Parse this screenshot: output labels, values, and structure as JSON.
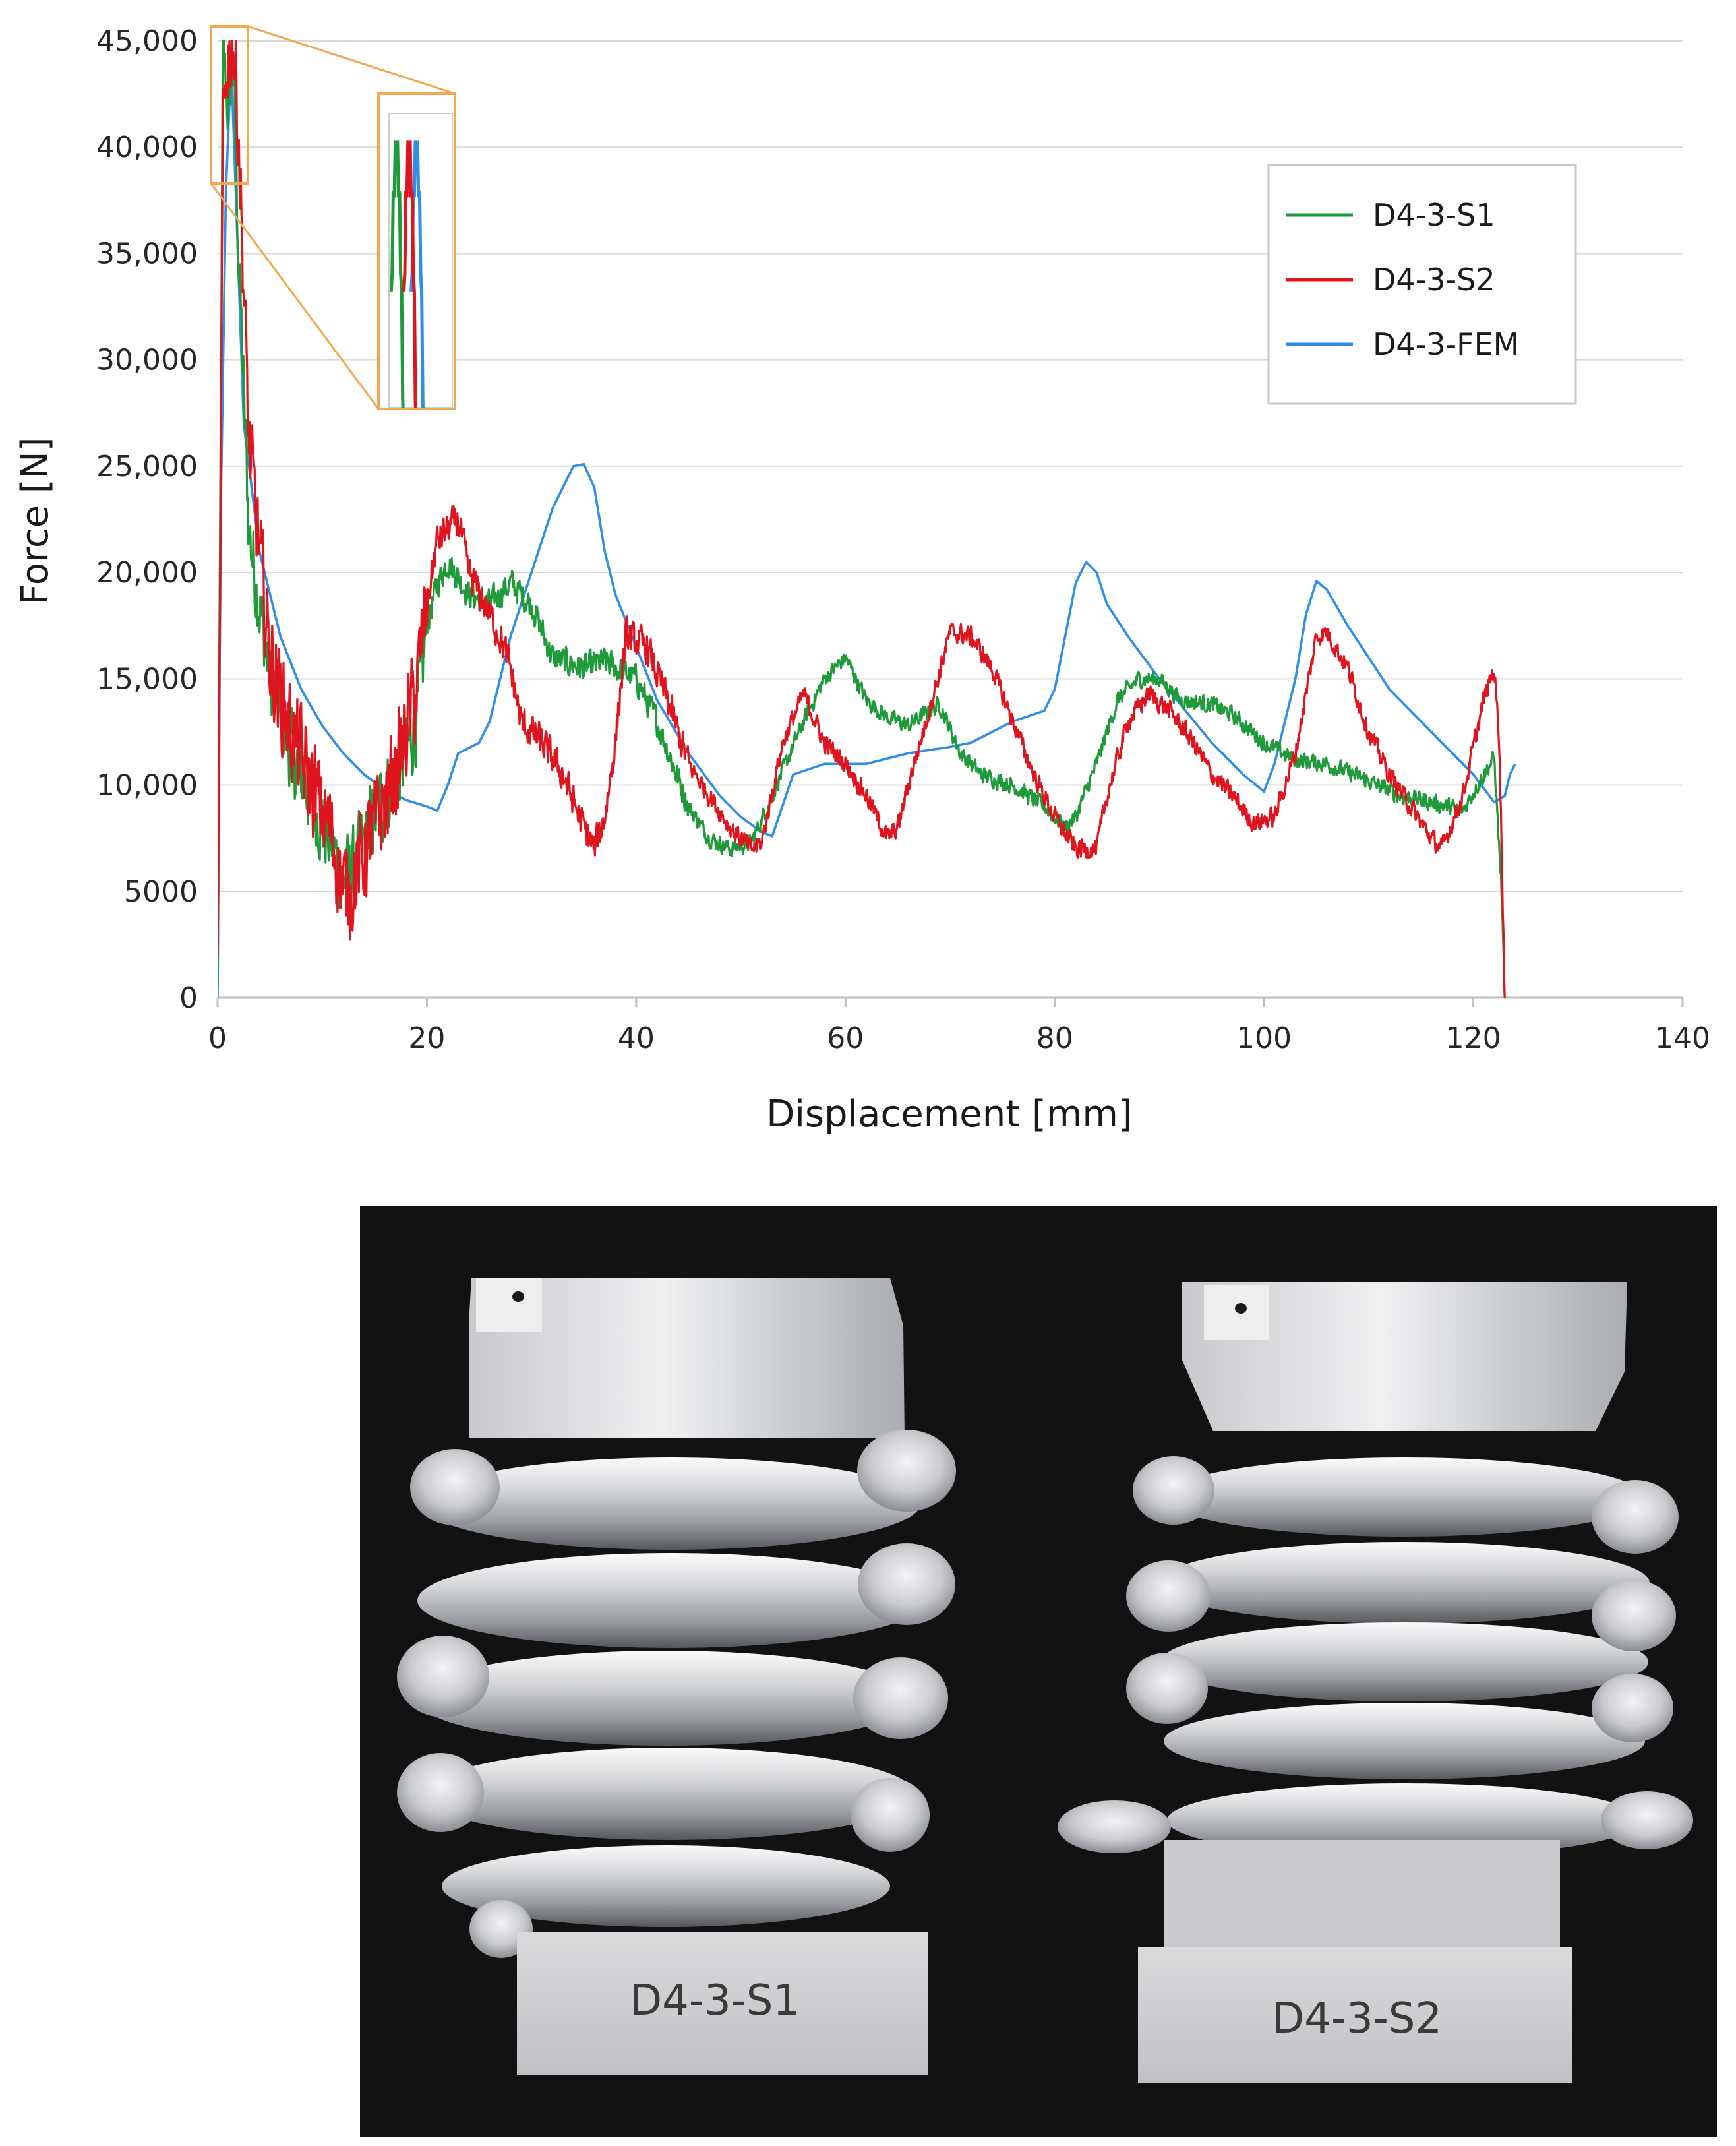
{
  "chart_data": {
    "type": "line",
    "xlabel": "Displacement [mm]",
    "ylabel": "Force [N]",
    "xlim": [
      0,
      140
    ],
    "ylim": [
      0,
      45000
    ],
    "x_ticks": [
      "0",
      "20",
      "40",
      "60",
      "80",
      "100",
      "120",
      "140"
    ],
    "y_ticks": [
      "0",
      "5000",
      "10,000",
      "15,000",
      "20,000",
      "25,000",
      "30,000",
      "35,000",
      "40,000",
      "45,000"
    ],
    "grid": "horizontal",
    "legend_position": "top-right",
    "inset": "zoom of initial peak (0–3 mm, 38,000–45,000 N)",
    "series": [
      {
        "name": "D4-3-S1",
        "color": "#1f9a3a",
        "noise": 2200,
        "points": [
          [
            0,
            0
          ],
          [
            0.5,
            44500
          ],
          [
            1,
            42000
          ],
          [
            1.5,
            44000
          ],
          [
            2,
            35000
          ],
          [
            3,
            22000
          ],
          [
            5,
            15000
          ],
          [
            7,
            11500
          ],
          [
            9,
            9500
          ],
          [
            11,
            7000
          ],
          [
            12,
            5500
          ],
          [
            13,
            6000
          ],
          [
            15,
            8500
          ],
          [
            17,
            10500
          ],
          [
            18,
            11500
          ],
          [
            19,
            13000
          ],
          [
            20,
            17500
          ],
          [
            21,
            19500
          ],
          [
            22,
            20500
          ],
          [
            24,
            19000
          ],
          [
            26,
            18500
          ],
          [
            28,
            19500
          ],
          [
            30,
            18500
          ],
          [
            32,
            16000
          ],
          [
            35,
            15500
          ],
          [
            37,
            15800
          ],
          [
            40,
            15000
          ],
          [
            42,
            13000
          ],
          [
            45,
            9000
          ],
          [
            47,
            7500
          ],
          [
            49,
            7000
          ],
          [
            51,
            7300
          ],
          [
            53,
            9500
          ],
          [
            56,
            13000
          ],
          [
            58,
            15000
          ],
          [
            60,
            16000
          ],
          [
            62,
            14000
          ],
          [
            64,
            13200
          ],
          [
            66,
            12800
          ],
          [
            68,
            13500
          ],
          [
            69,
            13800
          ],
          [
            71,
            11500
          ],
          [
            73,
            10500
          ],
          [
            76,
            10000
          ],
          [
            79,
            9000
          ],
          [
            81,
            8000
          ],
          [
            82,
            8500
          ],
          [
            84,
            11000
          ],
          [
            86,
            14000
          ],
          [
            88,
            15000
          ],
          [
            90,
            15000
          ],
          [
            92,
            14000
          ],
          [
            95,
            13800
          ],
          [
            97,
            13300
          ],
          [
            100,
            12000
          ],
          [
            103,
            11200
          ],
          [
            106,
            11000
          ],
          [
            110,
            10200
          ],
          [
            113,
            9500
          ],
          [
            116,
            9200
          ],
          [
            119,
            8800
          ],
          [
            121,
            10500
          ],
          [
            122,
            11300
          ],
          [
            122.7,
            5000
          ],
          [
            123,
            0
          ]
        ]
      },
      {
        "name": "D4-3-S2",
        "color": "#e0141e",
        "noise": 2600,
        "points": [
          [
            0,
            0
          ],
          [
            0.5,
            40000
          ],
          [
            1,
            44800
          ],
          [
            1.5,
            45000
          ],
          [
            2,
            41000
          ],
          [
            3,
            26000
          ],
          [
            5,
            16000
          ],
          [
            7,
            12500
          ],
          [
            9,
            10000
          ],
          [
            11,
            7500
          ],
          [
            12,
            5000
          ],
          [
            13,
            5500
          ],
          [
            15,
            8000
          ],
          [
            17,
            10500
          ],
          [
            19,
            14500
          ],
          [
            20,
            18500
          ],
          [
            21,
            21500
          ],
          [
            23,
            22500
          ],
          [
            24,
            20000
          ],
          [
            26,
            18000
          ],
          [
            27,
            17000
          ],
          [
            28,
            15500
          ],
          [
            29,
            13000
          ],
          [
            31,
            12000
          ],
          [
            33,
            10500
          ],
          [
            35,
            8000
          ],
          [
            36,
            7000
          ],
          [
            37,
            8500
          ],
          [
            38,
            12000
          ],
          [
            39,
            17000
          ],
          [
            41,
            16500
          ],
          [
            43,
            14000
          ],
          [
            45,
            11000
          ],
          [
            47,
            9500
          ],
          [
            49,
            8000
          ],
          [
            51,
            7000
          ],
          [
            52,
            7300
          ],
          [
            54,
            12000
          ],
          [
            56,
            14300
          ],
          [
            58,
            12000
          ],
          [
            60,
            11000
          ],
          [
            62,
            9500
          ],
          [
            64,
            7500
          ],
          [
            65,
            8000
          ],
          [
            66,
            10000
          ],
          [
            68,
            13500
          ],
          [
            70,
            17200
          ],
          [
            72,
            17000
          ],
          [
            74,
            15500
          ],
          [
            76,
            13000
          ],
          [
            78,
            10500
          ],
          [
            80,
            8500
          ],
          [
            82,
            7000
          ],
          [
            84,
            7000
          ],
          [
            85,
            9500
          ],
          [
            87,
            13000
          ],
          [
            89,
            14300
          ],
          [
            91,
            13500
          ],
          [
            93,
            12200
          ],
          [
            95,
            10500
          ],
          [
            97,
            9500
          ],
          [
            99,
            8200
          ],
          [
            101,
            8500
          ],
          [
            103,
            11500
          ],
          [
            105,
            17000
          ],
          [
            106,
            17200
          ],
          [
            108,
            15500
          ],
          [
            110,
            12500
          ],
          [
            112,
            10500
          ],
          [
            114,
            9000
          ],
          [
            116,
            7500
          ],
          [
            117,
            7000
          ],
          [
            119,
            9500
          ],
          [
            121,
            14000
          ],
          [
            122,
            15500
          ],
          [
            122.5,
            12000
          ],
          [
            123,
            0
          ]
        ]
      },
      {
        "name": "D4-3-FEM",
        "color": "#2e8ee8",
        "noise": 0,
        "points": [
          [
            0,
            0
          ],
          [
            0.3,
            23000
          ],
          [
            0.8,
            38000
          ],
          [
            1.3,
            44000
          ],
          [
            1.8,
            37000
          ],
          [
            2.5,
            27000
          ],
          [
            4,
            21000
          ],
          [
            6,
            17000
          ],
          [
            8,
            14500
          ],
          [
            10,
            12800
          ],
          [
            12,
            11500
          ],
          [
            14,
            10500
          ],
          [
            16,
            9800
          ],
          [
            18,
            9300
          ],
          [
            20,
            9000
          ],
          [
            21,
            8800
          ],
          [
            22,
            10000
          ],
          [
            23,
            11500
          ],
          [
            25,
            12000
          ],
          [
            26,
            13000
          ],
          [
            28,
            17000
          ],
          [
            30,
            20000
          ],
          [
            32,
            23000
          ],
          [
            34,
            25000
          ],
          [
            35,
            25100
          ],
          [
            36,
            24000
          ],
          [
            37,
            21000
          ],
          [
            38,
            19000
          ],
          [
            40,
            16500
          ],
          [
            42,
            14000
          ],
          [
            45,
            11500
          ],
          [
            48,
            9500
          ],
          [
            50,
            8500
          ],
          [
            52,
            7800
          ],
          [
            53,
            7600
          ],
          [
            55,
            10500
          ],
          [
            58,
            11000
          ],
          [
            62,
            11000
          ],
          [
            66,
            11500
          ],
          [
            70,
            11800
          ],
          [
            72,
            12000
          ],
          [
            76,
            13000
          ],
          [
            79,
            13500
          ],
          [
            80,
            14500
          ],
          [
            81,
            17000
          ],
          [
            82,
            19500
          ],
          [
            83,
            20500
          ],
          [
            84,
            20000
          ],
          [
            85,
            18500
          ],
          [
            87,
            17000
          ],
          [
            90,
            15000
          ],
          [
            95,
            12000
          ],
          [
            98,
            10500
          ],
          [
            100,
            9700
          ],
          [
            101,
            11000
          ],
          [
            103,
            15000
          ],
          [
            104,
            18000
          ],
          [
            105,
            19600
          ],
          [
            106,
            19200
          ],
          [
            108,
            17500
          ],
          [
            110,
            16000
          ],
          [
            112,
            14500
          ],
          [
            115,
            13000
          ],
          [
            118,
            11500
          ],
          [
            120,
            10500
          ],
          [
            122,
            9200
          ],
          [
            123,
            9500
          ],
          [
            123.5,
            10500
          ],
          [
            124,
            11000
          ]
        ]
      }
    ]
  },
  "photo": {
    "specimen_left_label": "D4-3-S1",
    "specimen_right_label": "D4-3-S2"
  }
}
